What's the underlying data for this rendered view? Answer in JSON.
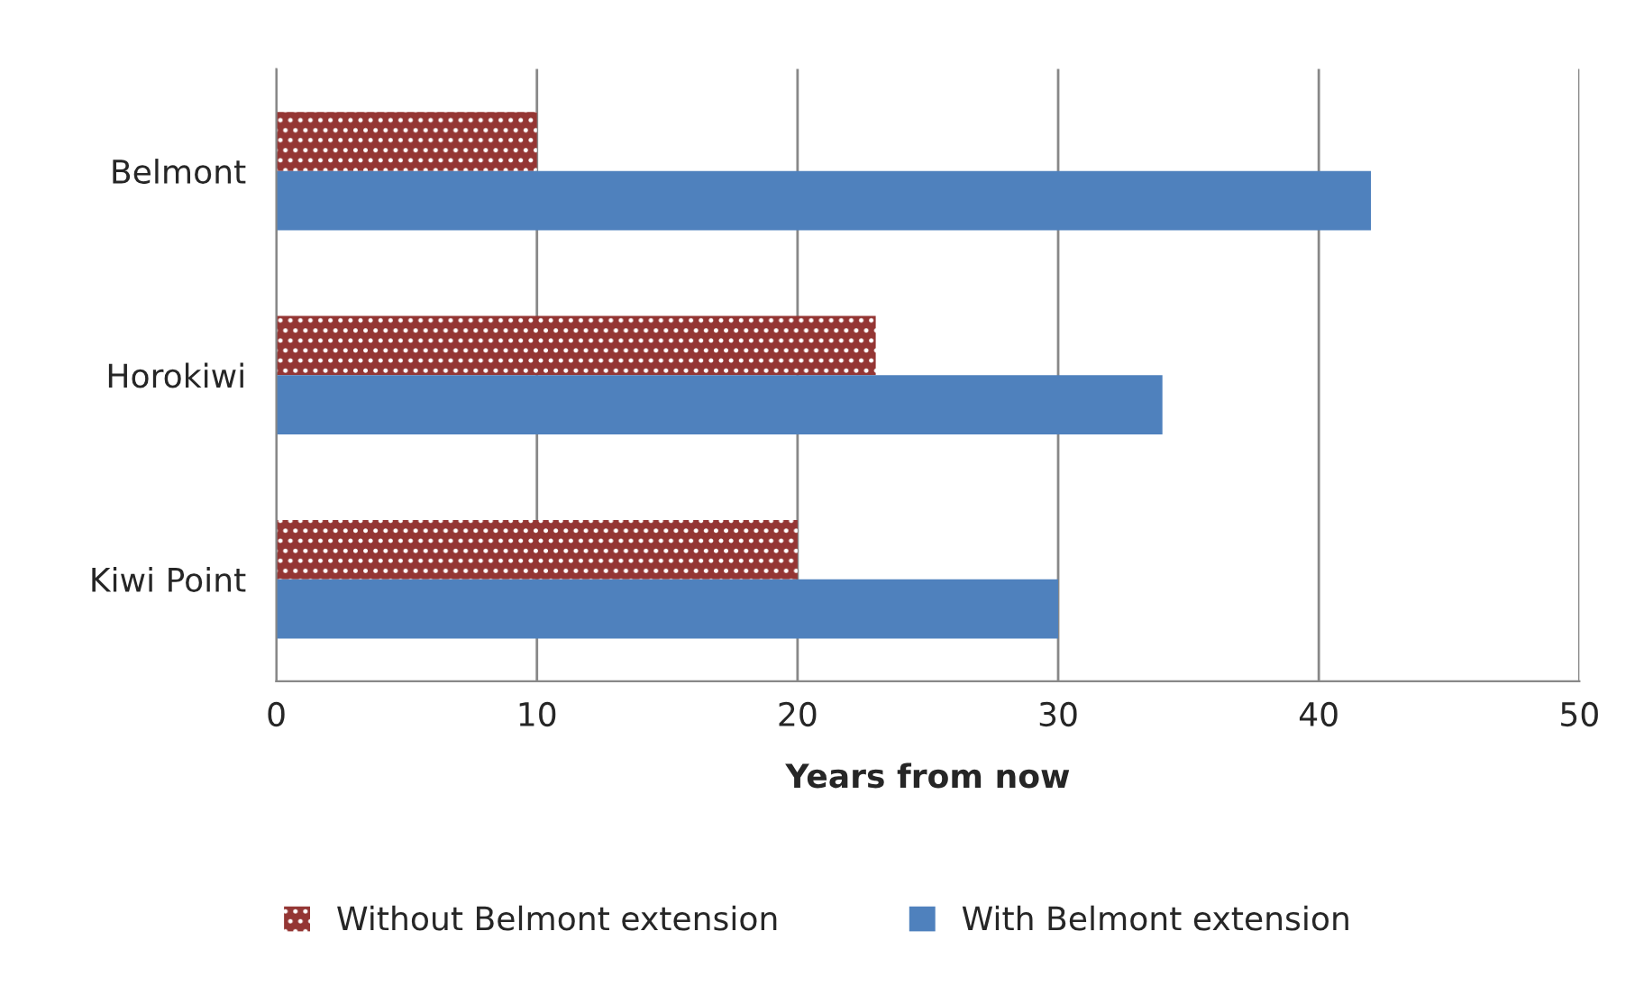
{
  "chart_data": {
    "type": "bar",
    "orientation": "horizontal",
    "categories": [
      "Belmont",
      "Horokiwi",
      "Kiwi Point"
    ],
    "series": [
      {
        "name": "Without Belmont extension",
        "color": "#943634",
        "values": [
          10,
          23,
          20
        ]
      },
      {
        "name": "With Belmont extension",
        "color": "#4f81bd",
        "values": [
          42,
          34,
          30
        ]
      }
    ],
    "xlabel": "Years from now",
    "xlim": [
      0,
      50
    ],
    "xticks": [
      0,
      10,
      20,
      30,
      40,
      50
    ],
    "grid": "x",
    "legend": "bottom"
  }
}
